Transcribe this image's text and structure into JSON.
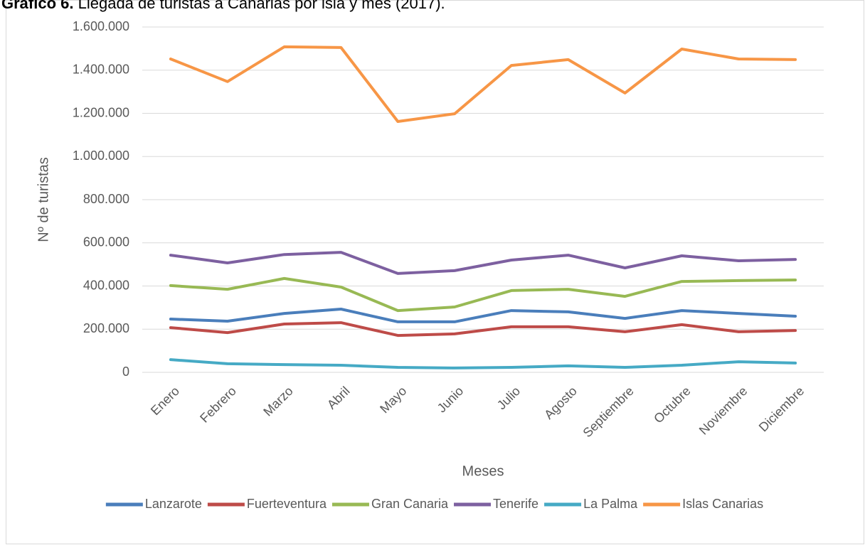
{
  "chart_data": {
    "type": "line",
    "title_prefix": "Gráfico 6.",
    "title": "Llegada de turistas a Canarias por isla y mes (2017).",
    "x_label": "Meses",
    "y_label": "Nº de turistas",
    "categories": [
      "Enero",
      "Febrero",
      "Marzo",
      "Abril",
      "Mayo",
      "Junio",
      "Julio",
      "Agosto",
      "Septiembre",
      "Octubre",
      "Noviembre",
      "Diciembre"
    ],
    "series": [
      {
        "name": "Lanzarote",
        "color": "#4a7ebb",
        "values": [
          247000,
          237000,
          273000,
          293000,
          234000,
          234000,
          286000,
          280000,
          250000,
          286000,
          273000,
          260000
        ]
      },
      {
        "name": "Fuerteventura",
        "color": "#be4b48",
        "values": [
          207000,
          184000,
          224000,
          230000,
          171000,
          178000,
          211000,
          211000,
          188000,
          221000,
          188000,
          194000
        ]
      },
      {
        "name": "Gran Canaria",
        "color": "#98b954",
        "values": [
          402000,
          385000,
          435000,
          395000,
          286000,
          303000,
          379000,
          385000,
          352000,
          421000,
          425000,
          428000
        ]
      },
      {
        "name": "Tenerife",
        "color": "#7d60a0",
        "values": [
          543000,
          507000,
          546000,
          556000,
          458000,
          471000,
          520000,
          543000,
          484000,
          540000,
          517000,
          523000
        ]
      },
      {
        "name": "La Palma",
        "color": "#46aac5",
        "values": [
          59000,
          40000,
          36000,
          33000,
          23000,
          20000,
          23000,
          30000,
          23000,
          33000,
          49000,
          43000
        ]
      },
      {
        "name": "Islas Canarias",
        "color": "#f79646",
        "values": [
          1452000,
          1347000,
          1508000,
          1505000,
          1162000,
          1198000,
          1422000,
          1449000,
          1294000,
          1498000,
          1452000,
          1449000
        ]
      }
    ],
    "ylim": [
      0,
      1600000
    ],
    "yticks": [
      0,
      {
        "value": 200000,
        "label": "200.000"
      },
      {
        "value": 400000,
        "label": "400.000"
      },
      {
        "value": 600000,
        "label": "600.000"
      },
      {
        "value": 800000,
        "label": "800.000"
      },
      {
        "value": 1000000,
        "label": "1.000.000"
      },
      {
        "value": 1200000,
        "label": "1.200.000"
      },
      {
        "value": 1400000,
        "label": "1.400.000"
      },
      {
        "value": 1600000,
        "label": "1.600.000"
      }
    ],
    "grid": true,
    "legend": "bottom"
  }
}
